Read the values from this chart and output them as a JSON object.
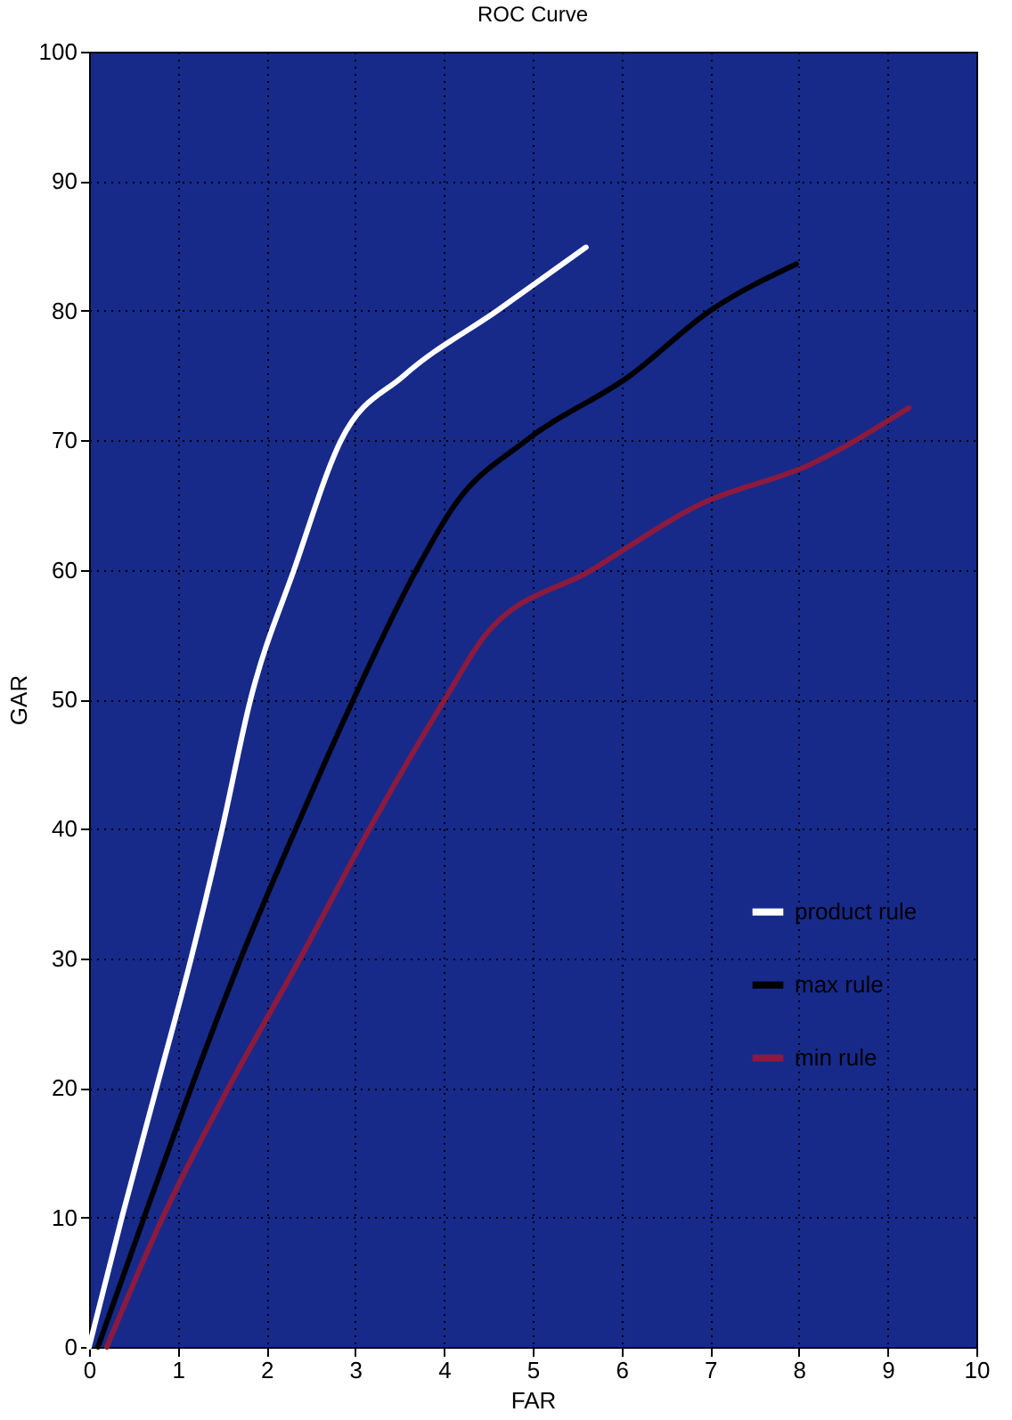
{
  "chart_data": {
    "type": "line",
    "title": "ROC Curve",
    "xlabel": "FAR",
    "ylabel": "GAR",
    "xlim": [
      0,
      10
    ],
    "ylim": [
      0,
      100
    ],
    "xticks": [
      0,
      1,
      2,
      3,
      4,
      5,
      6,
      7,
      8,
      9,
      10
    ],
    "yticks": [
      0,
      10,
      20,
      30,
      40,
      50,
      60,
      70,
      80,
      90,
      100
    ],
    "grid": true,
    "legend": "right",
    "line_style": "solid",
    "marker": "none",
    "series": [
      {
        "name": "product rule",
        "color": "#ffffff",
        "x": [
          0,
          0.37,
          0.76,
          1.15,
          1.5,
          1.82,
          2.31,
          2.84,
          3.55,
          4.6,
          5.6
        ],
        "values": [
          0,
          10,
          20,
          30,
          40,
          50,
          60,
          70,
          75,
          80,
          84.9
        ]
      },
      {
        "name": "max rule",
        "color": "#000000",
        "x": [
          0.1,
          0.62,
          1.15,
          1.71,
          2.33,
          2.98,
          3.69,
          4.12,
          4.93,
          6.1,
          7,
          7.97
        ],
        "values": [
          0,
          10,
          20,
          30,
          40,
          50,
          60,
          65,
          70,
          75,
          80,
          83.6
        ]
      },
      {
        "name": "min rule",
        "color": "#8b1a3f",
        "x": [
          0.2,
          0.83,
          1.57,
          2.38,
          3.16,
          4.01,
          4.47,
          5.67,
          6.87,
          8.15,
          9.24
        ],
        "values": [
          0,
          10,
          20,
          30,
          40,
          50,
          55,
          60,
          65,
          68.2,
          72.5
        ]
      }
    ]
  }
}
